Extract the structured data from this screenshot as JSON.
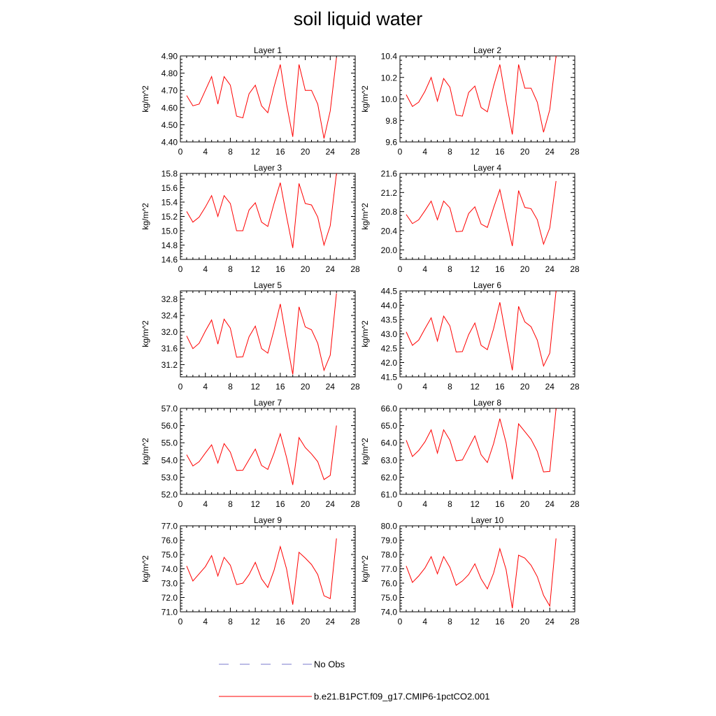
{
  "title": "soil liquid water",
  "legend": {
    "obs_label": "No Obs",
    "model_label": "b.e21.B1PCT.f09_g17.CMIP6-1pctCO2.001",
    "obs_color": "#7a7acc",
    "model_color": "#ff0000"
  },
  "chart_data": [
    {
      "type": "line",
      "title": "Layer 1",
      "ylabel": "kg/m^2",
      "xlim": [
        0,
        28
      ],
      "xticks": [
        0,
        4,
        8,
        12,
        16,
        20,
        24,
        28
      ],
      "ylim": [
        4.4,
        4.9
      ],
      "yticks": [
        "4.40",
        "4.50",
        "4.60",
        "4.70",
        "4.80",
        "4.90"
      ],
      "x": [
        1,
        2,
        3,
        4,
        5,
        6,
        7,
        8,
        9,
        10,
        11,
        12,
        13,
        14,
        15,
        16,
        17,
        18,
        19,
        20,
        21,
        22,
        23,
        24,
        25
      ],
      "series": [
        {
          "values": [
            4.67,
            4.61,
            4.62,
            4.7,
            4.78,
            4.62,
            4.78,
            4.73,
            4.55,
            4.54,
            4.68,
            4.73,
            4.61,
            4.57,
            4.72,
            4.85,
            4.62,
            4.43,
            4.85,
            4.7,
            4.7,
            4.62,
            4.42,
            4.58,
            4.89
          ]
        }
      ]
    },
    {
      "type": "line",
      "title": "Layer 2",
      "ylabel": "kg/m^2",
      "xlim": [
        0,
        28
      ],
      "xticks": [
        0,
        4,
        8,
        12,
        16,
        20,
        24,
        28
      ],
      "ylim": [
        9.6,
        10.4
      ],
      "yticks": [
        "9.6",
        "9.8",
        "10.0",
        "10.2",
        "10.4"
      ],
      "x": [
        1,
        2,
        3,
        4,
        5,
        6,
        7,
        8,
        9,
        10,
        11,
        12,
        13,
        14,
        15,
        16,
        17,
        18,
        19,
        20,
        21,
        22,
        23,
        24,
        25
      ],
      "series": [
        {
          "values": [
            10.04,
            9.93,
            9.97,
            10.07,
            10.2,
            9.98,
            10.19,
            10.11,
            9.85,
            9.84,
            10.06,
            10.12,
            9.92,
            9.88,
            10.12,
            10.32,
            9.98,
            9.67,
            10.32,
            10.1,
            10.1,
            9.97,
            9.69,
            9.9,
            10.4
          ]
        }
      ]
    },
    {
      "type": "line",
      "title": "Layer 3",
      "ylabel": "kg/m^2",
      "xlim": [
        0,
        28
      ],
      "xticks": [
        0,
        4,
        8,
        12,
        16,
        20,
        24,
        28
      ],
      "ylim": [
        14.6,
        15.8
      ],
      "yticks": [
        "14.6",
        "14.8",
        "15.0",
        "15.2",
        "15.4",
        "15.6",
        "15.8"
      ],
      "x": [
        1,
        2,
        3,
        4,
        5,
        6,
        7,
        8,
        9,
        10,
        11,
        12,
        13,
        14,
        15,
        16,
        17,
        18,
        19,
        20,
        21,
        22,
        23,
        24,
        25
      ],
      "series": [
        {
          "values": [
            15.27,
            15.12,
            15.19,
            15.33,
            15.49,
            15.2,
            15.49,
            15.38,
            15.0,
            15.0,
            15.29,
            15.39,
            15.12,
            15.06,
            15.38,
            15.67,
            15.2,
            14.76,
            15.66,
            15.38,
            15.36,
            15.19,
            14.8,
            15.07,
            15.8
          ]
        }
      ]
    },
    {
      "type": "line",
      "title": "Layer 4",
      "ylabel": "kg/m^2",
      "xlim": [
        0,
        28
      ],
      "xticks": [
        0,
        4,
        8,
        12,
        16,
        20,
        24,
        28
      ],
      "ylim": [
        19.8,
        21.6
      ],
      "yticks": [
        "20.0",
        "20.4",
        "20.8",
        "21.2",
        "21.6"
      ],
      "x": [
        1,
        2,
        3,
        4,
        5,
        6,
        7,
        8,
        9,
        10,
        11,
        12,
        13,
        14,
        15,
        16,
        17,
        18,
        19,
        20,
        21,
        22,
        23,
        24,
        25
      ],
      "series": [
        {
          "values": [
            20.74,
            20.55,
            20.63,
            20.82,
            21.02,
            20.63,
            21.02,
            20.88,
            20.38,
            20.39,
            20.76,
            20.9,
            20.54,
            20.47,
            20.88,
            21.26,
            20.66,
            20.08,
            21.24,
            20.89,
            20.86,
            20.63,
            20.12,
            20.46,
            21.44
          ]
        }
      ]
    },
    {
      "type": "line",
      "title": "Layer 5",
      "ylabel": "kg/m^2",
      "xlim": [
        0,
        28
      ],
      "xticks": [
        0,
        4,
        8,
        12,
        16,
        20,
        24,
        28
      ],
      "ylim": [
        30.9,
        33.0
      ],
      "yticks": [
        "31.2",
        "31.6",
        "32.0",
        "32.4",
        "32.8"
      ],
      "x": [
        1,
        2,
        3,
        4,
        5,
        6,
        7,
        8,
        9,
        10,
        11,
        12,
        13,
        14,
        15,
        16,
        17,
        18,
        19,
        20,
        21,
        22,
        23,
        24,
        25
      ],
      "series": [
        {
          "values": [
            31.9,
            31.59,
            31.72,
            32.02,
            32.29,
            31.7,
            32.31,
            32.09,
            31.38,
            31.39,
            31.88,
            32.14,
            31.59,
            31.48,
            32.05,
            32.68,
            31.8,
            30.96,
            32.61,
            32.12,
            32.05,
            31.72,
            31.06,
            31.43,
            32.94
          ]
        }
      ]
    },
    {
      "type": "line",
      "title": "Layer 6",
      "ylabel": "kg/m^2",
      "xlim": [
        0,
        28
      ],
      "xticks": [
        0,
        4,
        8,
        12,
        16,
        20,
        24,
        28
      ],
      "ylim": [
        41.5,
        44.5
      ],
      "yticks": [
        "41.5",
        "42.0",
        "42.5",
        "43.0",
        "43.5",
        "44.0",
        "44.5"
      ],
      "x": [
        1,
        2,
        3,
        4,
        5,
        6,
        7,
        8,
        9,
        10,
        11,
        12,
        13,
        14,
        15,
        16,
        17,
        18,
        19,
        20,
        21,
        22,
        23,
        24,
        25
      ],
      "series": [
        {
          "values": [
            43.07,
            42.6,
            42.78,
            43.18,
            43.56,
            42.75,
            43.62,
            43.28,
            42.37,
            42.38,
            42.97,
            43.38,
            42.6,
            42.45,
            43.18,
            44.1,
            42.9,
            41.73,
            43.96,
            43.42,
            43.25,
            42.78,
            41.88,
            42.33,
            44.5
          ]
        }
      ]
    },
    {
      "type": "line",
      "title": "Layer 7",
      "ylabel": "kg/m^2",
      "xlim": [
        0,
        28
      ],
      "xticks": [
        0,
        4,
        8,
        12,
        16,
        20,
        24,
        28
      ],
      "ylim": [
        52.0,
        57.0
      ],
      "yticks": [
        "52.0",
        "53.0",
        "54.0",
        "55.0",
        "56.0",
        "57.0"
      ],
      "x": [
        1,
        2,
        3,
        4,
        5,
        6,
        7,
        8,
        9,
        10,
        11,
        12,
        13,
        14,
        15,
        16,
        17,
        18,
        19,
        20,
        21,
        22,
        23,
        24,
        25
      ],
      "series": [
        {
          "values": [
            54.3,
            53.65,
            53.9,
            54.4,
            54.88,
            53.82,
            54.95,
            54.45,
            53.39,
            53.4,
            54.02,
            54.63,
            53.68,
            53.45,
            54.4,
            55.52,
            54.15,
            52.55,
            55.3,
            54.72,
            54.35,
            53.9,
            52.86,
            53.1,
            56.0
          ]
        }
      ]
    },
    {
      "type": "line",
      "title": "Layer 8",
      "ylabel": "kg/m^2",
      "xlim": [
        0,
        28
      ],
      "xticks": [
        0,
        4,
        8,
        12,
        16,
        20,
        24,
        28
      ],
      "ylim": [
        61.0,
        66.0
      ],
      "yticks": [
        "61.0",
        "62.0",
        "63.0",
        "64.0",
        "65.0",
        "66.0"
      ],
      "x": [
        1,
        2,
        3,
        4,
        5,
        6,
        7,
        8,
        9,
        10,
        11,
        12,
        13,
        14,
        15,
        16,
        17,
        18,
        19,
        20,
        21,
        22,
        23,
        24,
        25
      ],
      "series": [
        {
          "values": [
            64.15,
            63.2,
            63.55,
            64.05,
            64.75,
            63.4,
            64.75,
            64.15,
            62.95,
            63.0,
            63.7,
            64.4,
            63.3,
            62.85,
            63.95,
            65.4,
            64.0,
            61.87,
            65.1,
            64.65,
            64.2,
            63.5,
            62.3,
            62.33,
            65.98
          ]
        }
      ]
    },
    {
      "type": "line",
      "title": "Layer 9",
      "ylabel": "kg/m^2",
      "xlim": [
        0,
        28
      ],
      "xticks": [
        0,
        4,
        8,
        12,
        16,
        20,
        24,
        28
      ],
      "ylim": [
        71.0,
        77.0
      ],
      "yticks": [
        "71.0",
        "72.0",
        "73.0",
        "74.0",
        "75.0",
        "76.0",
        "77.0"
      ],
      "x": [
        1,
        2,
        3,
        4,
        5,
        6,
        7,
        8,
        9,
        10,
        11,
        12,
        13,
        14,
        15,
        16,
        17,
        18,
        19,
        20,
        21,
        22,
        23,
        24,
        25
      ],
      "series": [
        {
          "values": [
            74.2,
            73.15,
            73.65,
            74.15,
            74.92,
            73.5,
            74.8,
            74.25,
            72.9,
            73.0,
            73.6,
            74.45,
            73.3,
            72.7,
            73.9,
            75.55,
            74.0,
            71.5,
            75.15,
            74.75,
            74.3,
            73.6,
            72.12,
            71.92,
            76.12
          ]
        }
      ]
    },
    {
      "type": "line",
      "title": "Layer 10",
      "ylabel": "kg/m^2",
      "xlim": [
        0,
        28
      ],
      "xticks": [
        0,
        4,
        8,
        12,
        16,
        20,
        24,
        28
      ],
      "ylim": [
        74.0,
        80.0
      ],
      "yticks": [
        "74.0",
        "75.0",
        "76.0",
        "77.0",
        "78.0",
        "79.0",
        "80.0"
      ],
      "x": [
        1,
        2,
        3,
        4,
        5,
        6,
        7,
        8,
        9,
        10,
        11,
        12,
        13,
        14,
        15,
        16,
        17,
        18,
        19,
        20,
        21,
        22,
        23,
        24,
        25
      ],
      "series": [
        {
          "values": [
            77.2,
            76.05,
            76.5,
            77.05,
            77.85,
            76.65,
            77.85,
            77.1,
            75.85,
            76.15,
            76.6,
            77.35,
            76.3,
            75.6,
            76.7,
            78.4,
            76.95,
            74.25,
            77.95,
            77.75,
            77.25,
            76.45,
            75.15,
            74.4,
            79.12
          ]
        }
      ]
    }
  ]
}
